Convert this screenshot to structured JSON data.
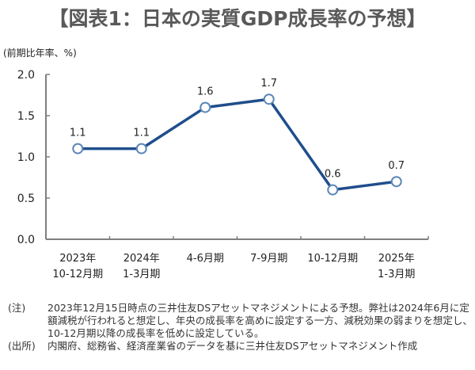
{
  "title": "【図表1：日本の実質GDP成長率の予想】",
  "unit_label": "(前期比年率、%)",
  "chart_data": {
    "type": "line",
    "title": "【図表1：日本の実質GDP成長率の予想】",
    "xlabel": "",
    "ylabel": "(前期比年率、%)",
    "categories": [
      [
        "2023年",
        "10-12月期"
      ],
      [
        "2024年",
        "1-3月期"
      ],
      [
        "4-6月期"
      ],
      [
        "7-9月期"
      ],
      [
        "10-12月期"
      ],
      [
        "2025年",
        "1-3月期"
      ]
    ],
    "series": [
      {
        "name": "実質GDP成長率",
        "values": [
          1.1,
          1.1,
          1.6,
          1.7,
          0.6,
          0.7
        ]
      }
    ],
    "data_labels": [
      "1.1",
      "1.1",
      "1.6",
      "1.7",
      "0.6",
      "0.7"
    ],
    "yticks": [
      0.0,
      0.5,
      1.0,
      1.5,
      2.0
    ],
    "ytick_labels": [
      "0.0",
      "0.5",
      "1.0",
      "1.5",
      "2.0"
    ],
    "ylim": [
      0,
      2.0
    ],
    "grid": false,
    "legend": "none",
    "colors": {
      "line": "#1f4e8c",
      "marker_edge": "#5b87b8",
      "marker_fill": "#ffffff",
      "axis": "#7f7f7f"
    }
  },
  "notes": [
    {
      "tag": "(注)",
      "text": "2023年12月15日時点の三井住友DSアセットマネジメントによる予想。弊社は2024年6月に定額減税が行われると想定し、年央の成長率を高めに設定する一方、減税効果の弱まりを想定し、10-12月期以降の成長率を低めに設定している。"
    },
    {
      "tag": "(出所)",
      "text": "内閣府、総務省、経済産業省のデータを基に三井住友DSアセットマネジメント作成"
    }
  ]
}
